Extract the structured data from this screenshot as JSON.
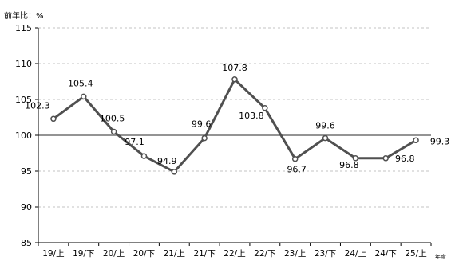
{
  "chart_data": {
    "type": "line",
    "unit_label": "前年比：%",
    "x_unit_label": "年度",
    "categories": [
      "19/上",
      "19/下",
      "20/上",
      "20/下",
      "21/上",
      "21/下",
      "22/上",
      "22/下",
      "23/上",
      "23/下",
      "24/上",
      "24/下",
      "25/上"
    ],
    "series": [
      {
        "values": [
          102.3,
          105.4,
          100.5,
          97.1,
          94.9,
          99.6,
          107.8,
          103.8,
          96.7,
          99.6,
          96.8,
          96.8,
          99.3
        ]
      }
    ],
    "data_labels": [
      "102.3",
      "105.4",
      "100.5",
      "97.1",
      "94.9",
      "99.6",
      "107.8",
      "103.8",
      "96.7",
      "99.6",
      "96.8",
      "96.8",
      "99.3"
    ],
    "ylim": [
      85,
      115
    ],
    "yticks": [
      85,
      90,
      95,
      100,
      105,
      110,
      115
    ],
    "reference_line": 100,
    "grid": "horizontal dashed",
    "colors": {
      "line": "#505050",
      "marker_fill": "#ffffff",
      "grid": "#b0b0b0",
      "axis": "#000000"
    }
  }
}
